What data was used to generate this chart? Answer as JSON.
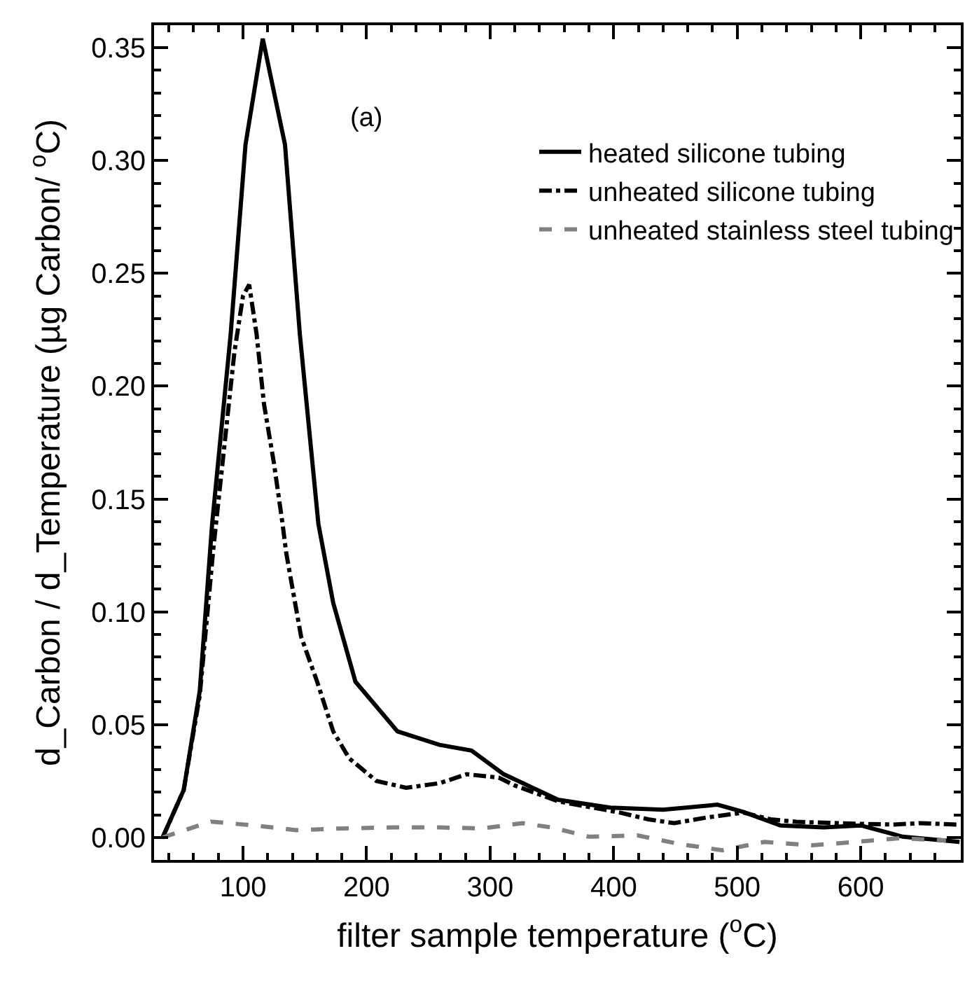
{
  "chart_data": {
    "type": "line",
    "xlabel": "filter sample temperature ($^{o}$C)",
    "ylabel": "d_Carbon / d_Temperature (µg Carbon/ $^{o}$C)",
    "annotations": [
      "(a)"
    ],
    "xlim": [
      28,
      681
    ],
    "xticks": [
      100,
      200,
      300,
      400,
      500,
      600
    ],
    "ylim": [
      -0.01,
      0.36
    ],
    "yticks": [
      {
        "value": 0,
        "label": "0.00"
      },
      {
        "value": 0.05,
        "label": "0.05"
      },
      {
        "value": 0.1,
        "label": "0.10"
      },
      {
        "value": 0.15,
        "label": "0.15"
      },
      {
        "value": 0.2,
        "label": "0.20"
      },
      {
        "value": 0.25,
        "label": "0.25"
      },
      {
        "value": 0.3,
        "label": "0.30"
      },
      {
        "value": 0.35,
        "label": "0.35"
      }
    ],
    "legend": "top right",
    "marker": "none",
    "series": [
      {
        "name": "heated silicone tubing",
        "color": "#000000",
        "line_style": "solid",
        "x": [
          35,
          52,
          65,
          75,
          90,
          102,
          116,
          134,
          146,
          161,
          173,
          191,
          225,
          259,
          285,
          311,
          355,
          397,
          440,
          484,
          505,
          535,
          570,
          600,
          634,
          680
        ],
        "values": [
          0,
          0.021,
          0.065,
          0.139,
          0.223,
          0.307,
          0.354,
          0.307,
          0.223,
          0.139,
          0.104,
          0.069,
          0.047,
          0.041,
          0.0385,
          0.028,
          0.0167,
          0.0132,
          0.0123,
          0.0145,
          0.0113,
          0.0053,
          0.0044,
          0.0053,
          0.0003,
          -0.002
        ]
      },
      {
        "name": "unheated silicone tubing",
        "color": "#000000",
        "line_style": "dashdot",
        "x": [
          35,
          52,
          65,
          76,
          93,
          100,
          105,
          111,
          117,
          125,
          132,
          135,
          147,
          160,
          173,
          186,
          208,
          232,
          259,
          281,
          307,
          320,
          355,
          405,
          428,
          449,
          475,
          505,
          527,
          548,
          600,
          626,
          648,
          678
        ],
        "values": [
          0,
          0.021,
          0.063,
          0.128,
          0.215,
          0.24,
          0.245,
          0.223,
          0.192,
          0.166,
          0.139,
          0.126,
          0.089,
          0.069,
          0.047,
          0.035,
          0.025,
          0.022,
          0.024,
          0.028,
          0.0265,
          0.023,
          0.016,
          0.011,
          0.008,
          0.0063,
          0.0088,
          0.011,
          0.008,
          0.0069,
          0.006,
          0.0057,
          0.0063,
          0.0057
        ]
      },
      {
        "name": "unheated stainless steel tubing",
        "color": "#808080",
        "line_style": "dashed",
        "x": [
          35,
          74,
          109,
          143,
          182,
          221,
          259,
          294,
          326,
          350,
          380,
          419,
          454,
          488,
          522,
          561,
          596,
          631,
          669
        ],
        "values": [
          0,
          0.007,
          0.0053,
          0.0032,
          0.004,
          0.0044,
          0.0044,
          0.004,
          0.0063,
          0.0044,
          0.0003,
          0.0009,
          -0.003,
          -0.0057,
          -0.002,
          -0.0035,
          -0.002,
          -0.0004,
          -0.0013
        ]
      }
    ]
  }
}
